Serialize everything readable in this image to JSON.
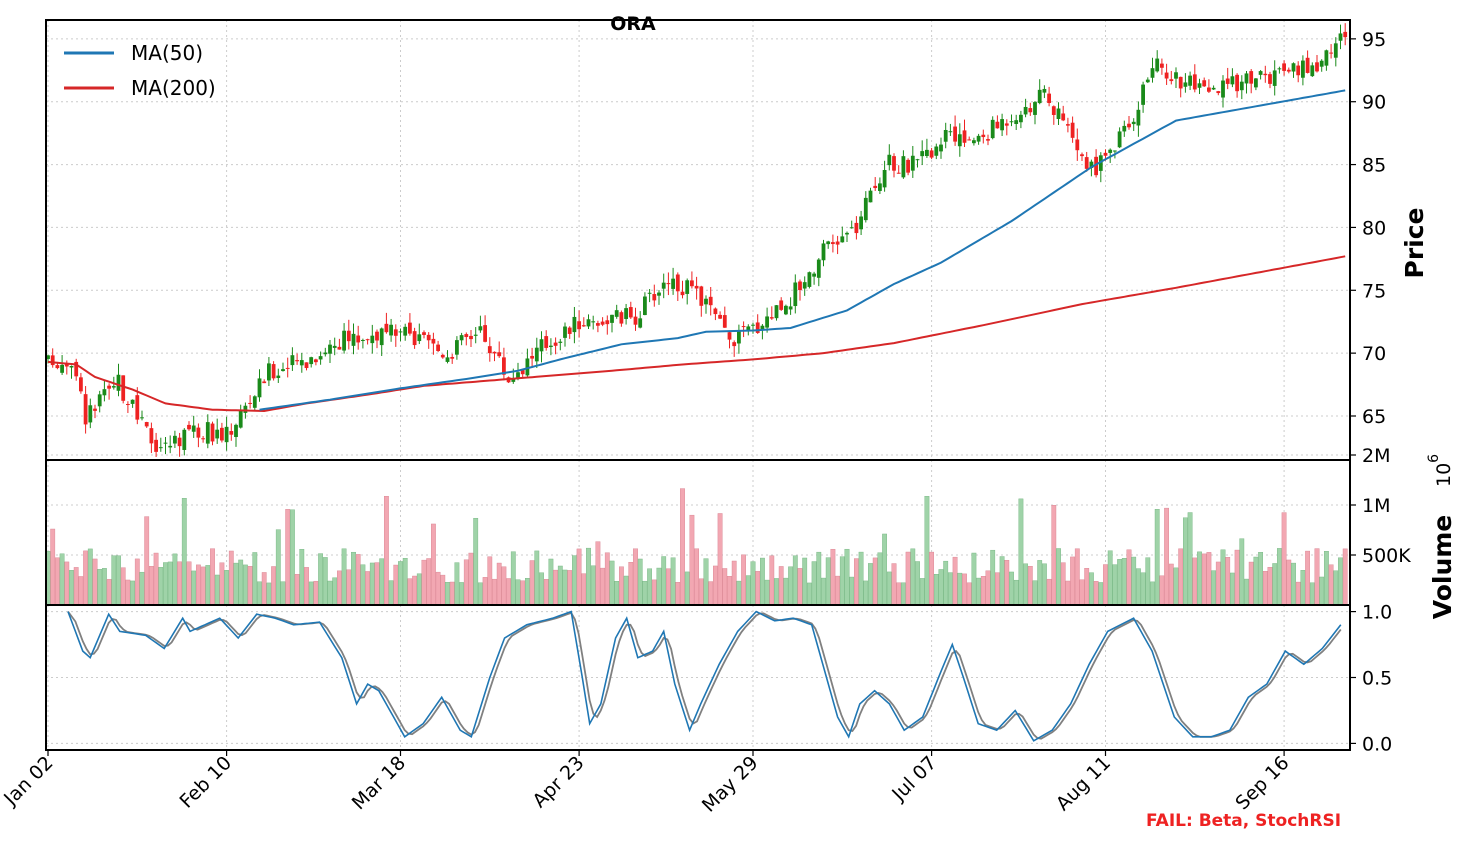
{
  "chart_data": {
    "type": "candlestick",
    "title": "ORA",
    "price_axis": {
      "label": "Price",
      "ticks": [
        65,
        70,
        75,
        80,
        85,
        90,
        95
      ],
      "ylim": [
        61.5,
        96.5
      ],
      "grid": true
    },
    "volume_axis": {
      "label": "Volume",
      "exponent_label": "10",
      "exponent_power": "6",
      "tick_labels": [
        "500K",
        "1M",
        "2M"
      ],
      "tick_values": [
        0.5,
        1.0,
        1.5
      ],
      "ylim": [
        0,
        1.45
      ]
    },
    "osc_axis": {
      "tick_labels": [
        "0.0",
        "0.5",
        "1.0"
      ],
      "tick_values": [
        0,
        0.5,
        1
      ],
      "ylim": [
        -0.05,
        1.05
      ]
    },
    "x_tick_labels": [
      "Jan 02",
      "Feb 10",
      "Mar 18",
      "Apr 23",
      "May 29",
      "Jul 07",
      "Aug 11",
      "Sep 16"
    ],
    "x_tick_index": [
      0,
      38,
      75,
      113,
      150,
      188,
      225,
      263
    ],
    "n_days": 277,
    "legend": {
      "placement": "top-left",
      "items": [
        "MA(50)",
        "MA(200)"
      ]
    },
    "colors": {
      "up": "#1a8a1a",
      "down": "#ee2222",
      "vol_up": "#9fd3a8",
      "vol_down": "#f2a7b2",
      "ma50": "#1f77b4",
      "ma200": "#d62728",
      "k_line": "#1f77b4",
      "d_line": "#808080",
      "grid": "#cccccc"
    },
    "close_anchors": [
      [
        0,
        69.2
      ],
      [
        5,
        69.5
      ],
      [
        8,
        65
      ],
      [
        15,
        67.5
      ],
      [
        22,
        63
      ],
      [
        25,
        62.5
      ],
      [
        30,
        64
      ],
      [
        38,
        63.5
      ],
      [
        47,
        68.5
      ],
      [
        55,
        69.5
      ],
      [
        62,
        71
      ],
      [
        70,
        71.5
      ],
      [
        75,
        71.5
      ],
      [
        85,
        70
      ],
      [
        92,
        72
      ],
      [
        98,
        68
      ],
      [
        105,
        70.5
      ],
      [
        113,
        72.5
      ],
      [
        125,
        73
      ],
      [
        132,
        76
      ],
      [
        140,
        74
      ],
      [
        145,
        71
      ],
      [
        150,
        72
      ],
      [
        158,
        74.5
      ],
      [
        165,
        78
      ],
      [
        172,
        80
      ],
      [
        178,
        85
      ],
      [
        185,
        85
      ],
      [
        190,
        87
      ],
      [
        198,
        87
      ],
      [
        205,
        89
      ],
      [
        212,
        90.5
      ],
      [
        222,
        84.5
      ],
      [
        230,
        88
      ],
      [
        235,
        93
      ],
      [
        240,
        92
      ],
      [
        247,
        90.5
      ],
      [
        255,
        92
      ],
      [
        263,
        92
      ],
      [
        270,
        93
      ],
      [
        276,
        95.5
      ]
    ],
    "ma50_anchors": [
      [
        45,
        65.5
      ],
      [
        60,
        66.3
      ],
      [
        75,
        67.2
      ],
      [
        90,
        68
      ],
      [
        100,
        68.6
      ],
      [
        110,
        69.6
      ],
      [
        122,
        70.7
      ],
      [
        134,
        71.2
      ],
      [
        140,
        71.7
      ],
      [
        150,
        71.8
      ],
      [
        158,
        72
      ],
      [
        170,
        73.4
      ],
      [
        180,
        75.5
      ],
      [
        190,
        77.2
      ],
      [
        205,
        80.5
      ],
      [
        222,
        84.8
      ],
      [
        240,
        88.5
      ],
      [
        276,
        90.9
      ]
    ],
    "ma200_anchors": [
      [
        0,
        69.3
      ],
      [
        6,
        69.1
      ],
      [
        10,
        68.1
      ],
      [
        18,
        67.1
      ],
      [
        25,
        66.0
      ],
      [
        35,
        65.5
      ],
      [
        46,
        65.4
      ],
      [
        55,
        66.0
      ],
      [
        68,
        66.7
      ],
      [
        80,
        67.4
      ],
      [
        100,
        68.0
      ],
      [
        120,
        68.6
      ],
      [
        135,
        69.1
      ],
      [
        150,
        69.5
      ],
      [
        165,
        70.0
      ],
      [
        180,
        70.8
      ],
      [
        200,
        72.3
      ],
      [
        220,
        73.9
      ],
      [
        240,
        75.2
      ],
      [
        276,
        77.7
      ]
    ],
    "stoch_k_anchors": [
      [
        4,
        1.0
      ],
      [
        8,
        0.7
      ],
      [
        10,
        0.65
      ],
      [
        15,
        0.98
      ],
      [
        18,
        0.85
      ],
      [
        25,
        0.82
      ],
      [
        30,
        0.72
      ],
      [
        35,
        0.95
      ],
      [
        37,
        0.85
      ],
      [
        45,
        0.95
      ],
      [
        50,
        0.8
      ],
      [
        55,
        0.98
      ],
      [
        60,
        0.95
      ],
      [
        65,
        0.9
      ],
      [
        72,
        0.92
      ],
      [
        78,
        0.65
      ],
      [
        82,
        0.3
      ],
      [
        85,
        0.45
      ],
      [
        88,
        0.4
      ],
      [
        95,
        0.05
      ],
      [
        100,
        0.15
      ],
      [
        105,
        0.35
      ],
      [
        110,
        0.1
      ],
      [
        113,
        0.05
      ],
      [
        118,
        0.5
      ],
      [
        122,
        0.8
      ],
      [
        128,
        0.9
      ],
      [
        135,
        0.95
      ],
      [
        140,
        1.0
      ],
      [
        143,
        0.5
      ],
      [
        145,
        0.15
      ],
      [
        148,
        0.3
      ],
      [
        152,
        0.8
      ],
      [
        155,
        0.95
      ],
      [
        158,
        0.65
      ],
      [
        162,
        0.7
      ],
      [
        165,
        0.85
      ],
      [
        168,
        0.45
      ],
      [
        172,
        0.1
      ],
      [
        175,
        0.3
      ],
      [
        180,
        0.6
      ],
      [
        185,
        0.85
      ],
      [
        190,
        1.0
      ],
      [
        195,
        0.93
      ],
      [
        200,
        0.95
      ],
      [
        205,
        0.9
      ],
      [
        208,
        0.6
      ],
      [
        212,
        0.2
      ],
      [
        215,
        0.05
      ],
      [
        218,
        0.3
      ],
      [
        222,
        0.4
      ],
      [
        226,
        0.3
      ],
      [
        230,
        0.1
      ],
      [
        235,
        0.2
      ],
      [
        240,
        0.55
      ],
      [
        243,
        0.75
      ],
      [
        246,
        0.5
      ],
      [
        250,
        0.15
      ],
      [
        255,
        0.1
      ],
      [
        260,
        0.25
      ],
      [
        265,
        0.02
      ],
      [
        270,
        0.1
      ],
      [
        275,
        0.3
      ],
      [
        280,
        0.6
      ],
      [
        285,
        0.85
      ],
      [
        292,
        0.95
      ],
      [
        297,
        0.7
      ],
      [
        303,
        0.2
      ],
      [
        308,
        0.05
      ],
      [
        313,
        0.05
      ],
      [
        318,
        0.1
      ],
      [
        323,
        0.35
      ],
      [
        328,
        0.45
      ],
      [
        333,
        0.7
      ],
      [
        338,
        0.6
      ],
      [
        343,
        0.72
      ],
      [
        348,
        0.9
      ]
    ]
  },
  "watermark": {
    "text": "FAIL: Beta, StochRSI"
  }
}
